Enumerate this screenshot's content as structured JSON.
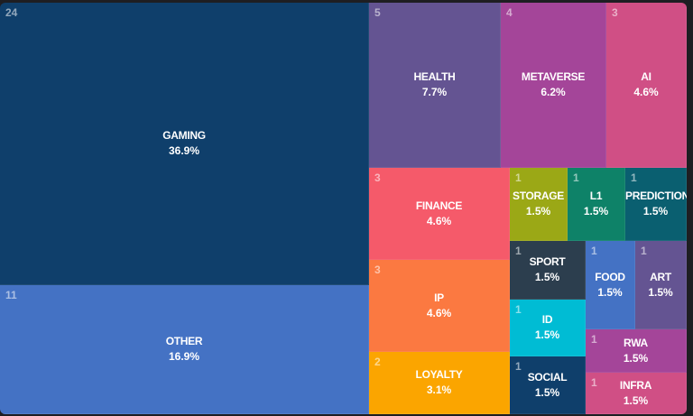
{
  "chart_data": {
    "type": "treemap",
    "title": "",
    "items": [
      {
        "name": "GAMING",
        "count": 24,
        "percent": "36.9%",
        "color": "#0f3f6b"
      },
      {
        "name": "OTHER",
        "count": 11,
        "percent": "16.9%",
        "color": "#4472c4"
      },
      {
        "name": "HEALTH",
        "count": 5,
        "percent": "7.7%",
        "color": "#645492"
      },
      {
        "name": "METAVERSE",
        "count": 4,
        "percent": "6.2%",
        "color": "#a44599"
      },
      {
        "name": "AI",
        "count": 3,
        "percent": "4.6%",
        "color": "#d04f85"
      },
      {
        "name": "FINANCE",
        "count": 3,
        "percent": "4.6%",
        "color": "#f55a6a"
      },
      {
        "name": "IP",
        "count": 3,
        "percent": "4.6%",
        "color": "#fb7941"
      },
      {
        "name": "LOYALTY",
        "count": 2,
        "percent": "3.1%",
        "color": "#fba500"
      },
      {
        "name": "STORAGE",
        "count": 1,
        "percent": "1.5%",
        "color": "#9ba816"
      },
      {
        "name": "L1",
        "count": 1,
        "percent": "1.5%",
        "color": "#0e8268"
      },
      {
        "name": "PREDICTION",
        "count": 1,
        "percent": "1.5%",
        "color": "#0a5f70"
      },
      {
        "name": "SPORT",
        "count": 1,
        "percent": "1.5%",
        "color": "#2c3e4e"
      },
      {
        "name": "FOOD",
        "count": 1,
        "percent": "1.5%",
        "color": "#4472c4"
      },
      {
        "name": "ART",
        "count": 1,
        "percent": "1.5%",
        "color": "#645492"
      },
      {
        "name": "ID",
        "count": 1,
        "percent": "1.5%",
        "color": "#00bcd4"
      },
      {
        "name": "RWA",
        "count": 1,
        "percent": "1.5%",
        "color": "#a44599"
      },
      {
        "name": "SOCIAL",
        "count": 1,
        "percent": "1.5%",
        "color": "#0f3f6b"
      },
      {
        "name": "INFRA",
        "count": 1,
        "percent": "1.5%",
        "color": "#d04f85"
      }
    ]
  }
}
